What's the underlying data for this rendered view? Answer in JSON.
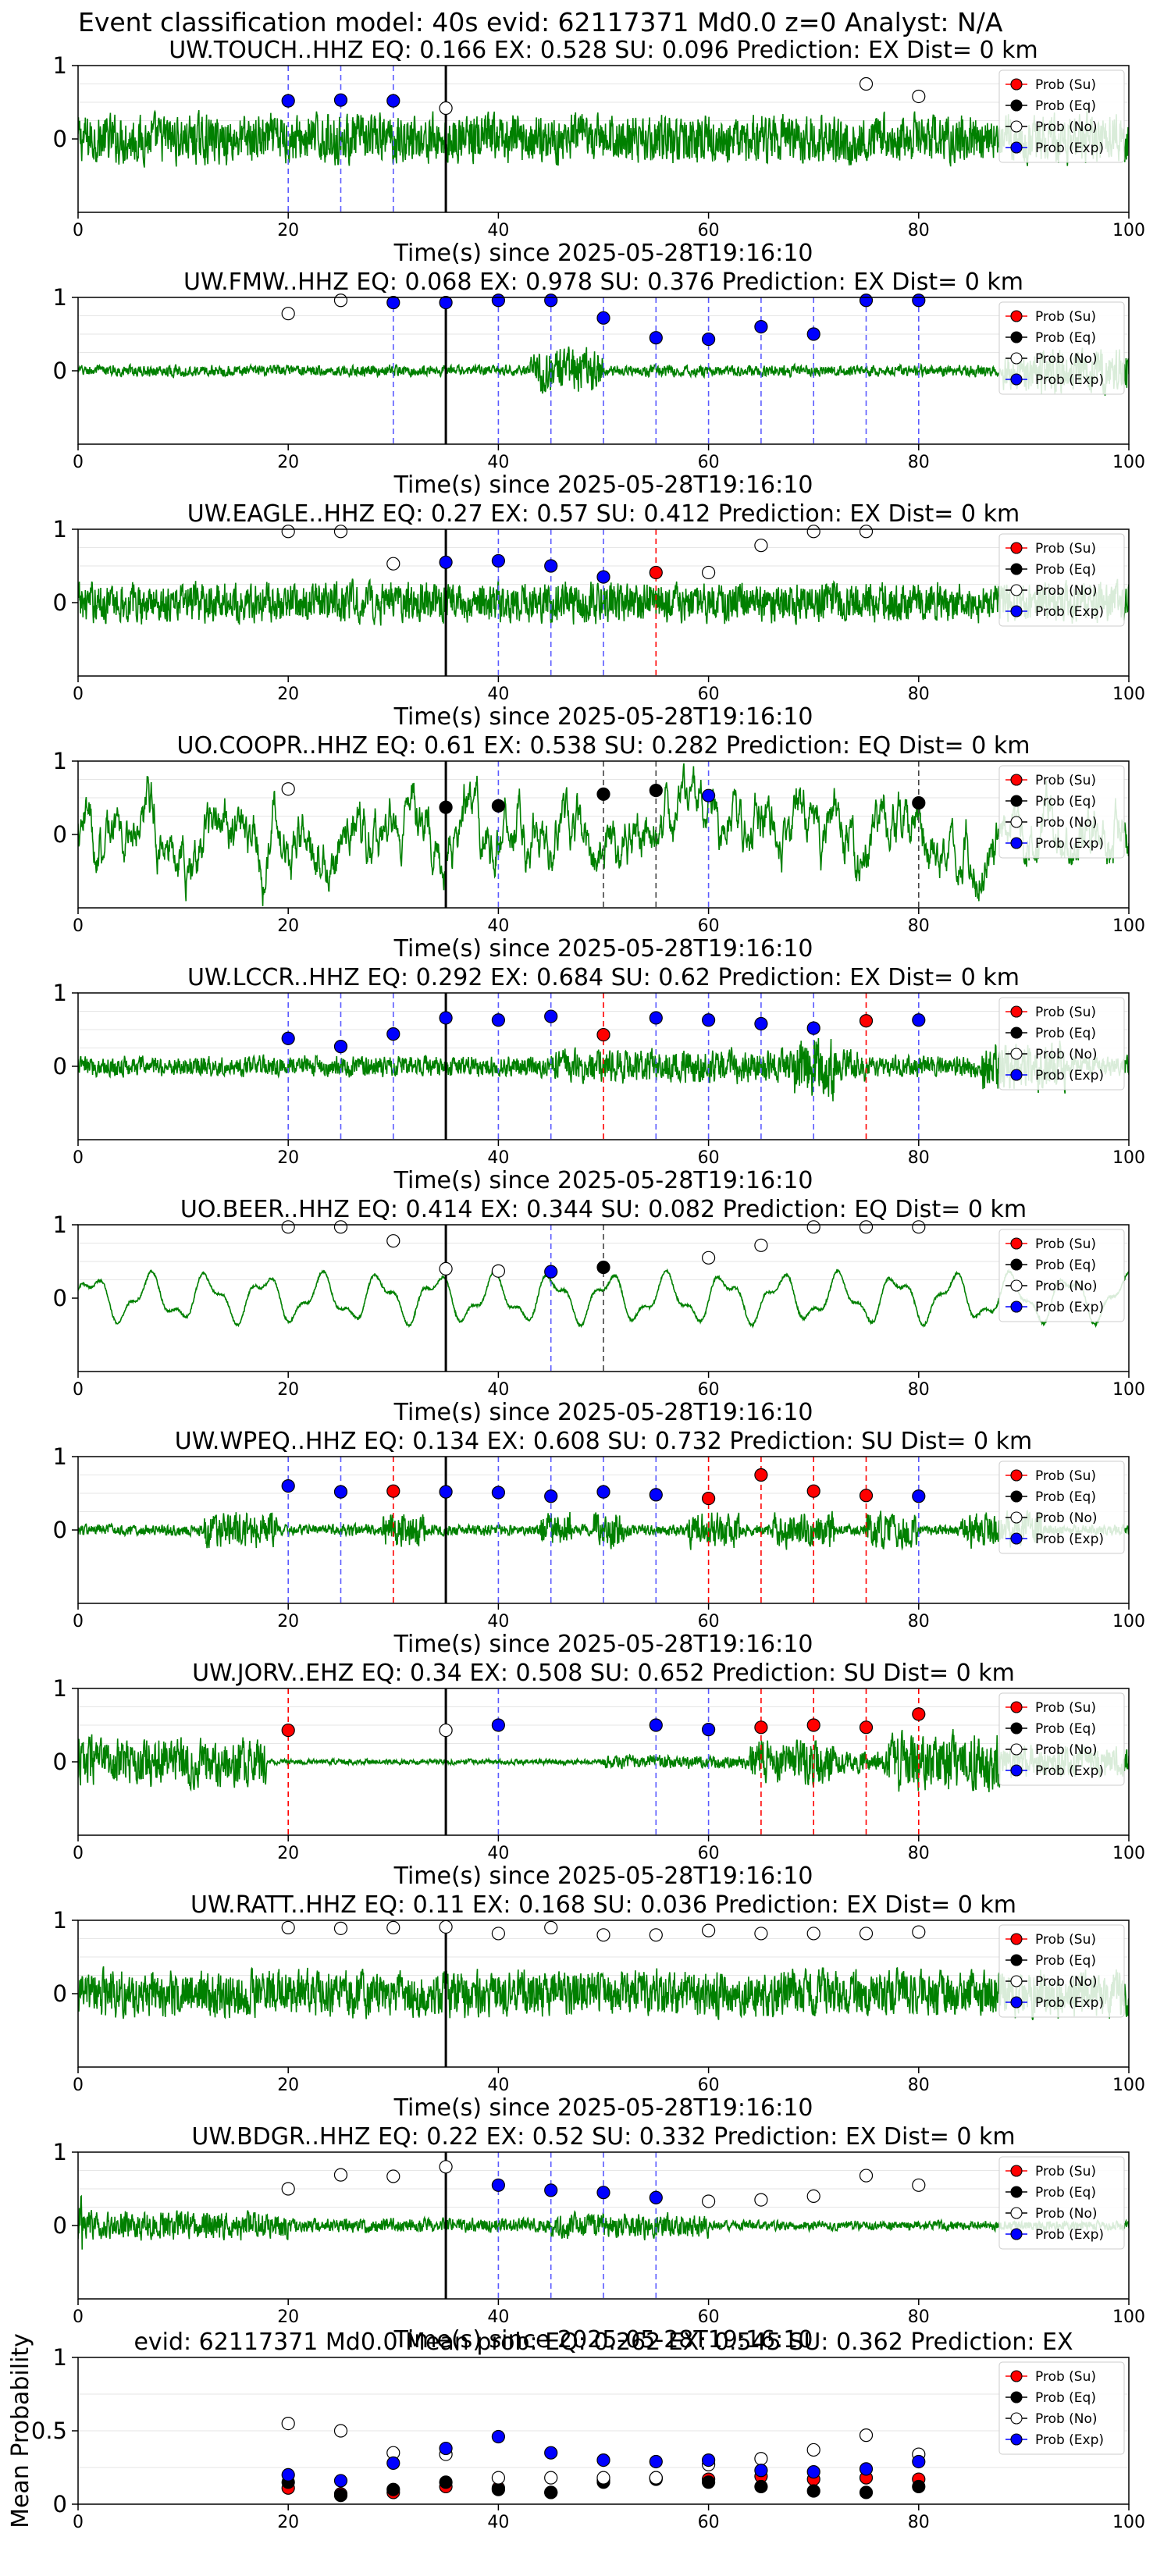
{
  "header": {
    "title": "Event classification model: 40s evid: 62117371 Md0.0 z=0 Analyst: N/A"
  },
  "legend_labels": [
    "Prob (Su)",
    "Prob (Eq)",
    "Prob (No)",
    "Prob (Exp)"
  ],
  "colors": {
    "waveform": "#008000",
    "su": "#ff0000",
    "eq": "#000000",
    "no": "#ffffff",
    "exp": "#0000ff",
    "pick": "#000000"
  },
  "chart_data": [
    {
      "type": "line",
      "title": "UW.TOUCH..HHZ   EQ: 0.166  EX: 0.528  SU: 0.096   Prediction: EX    Dist= 0 km",
      "xlabel": "Time(s) since 2025-05-28T19:16:10",
      "ylabel": "",
      "xlim": [
        0,
        100
      ],
      "ylim": [
        -1,
        1
      ],
      "yticks": [
        0,
        1
      ],
      "xticks": [
        0,
        20,
        40,
        60,
        80,
        100
      ],
      "pick_time": 35,
      "amplitude": 0.85,
      "envelope": "uniform",
      "vlines": [
        20,
        25,
        30
      ],
      "points": [
        {
          "x": 20,
          "y": 0.52,
          "class": "exp"
        },
        {
          "x": 25,
          "y": 0.53,
          "class": "exp"
        },
        {
          "x": 30,
          "y": 0.52,
          "class": "exp"
        },
        {
          "x": 35,
          "y": 0.42,
          "class": "no"
        },
        {
          "x": 75,
          "y": 0.75,
          "class": "no"
        },
        {
          "x": 80,
          "y": 0.58,
          "class": "no"
        }
      ]
    },
    {
      "type": "line",
      "title": "UW.FMW..HHZ   EQ: 0.068  EX: 0.978  SU: 0.376   Prediction: EX    Dist= 0 km",
      "xlabel": "Time(s) since 2025-05-28T19:16:10",
      "ylabel": "",
      "xlim": [
        0,
        100
      ],
      "ylim": [
        -1,
        1
      ],
      "yticks": [
        0,
        1
      ],
      "xticks": [
        0,
        20,
        40,
        60,
        80,
        100
      ],
      "pick_time": 35,
      "amplitude": 0.35,
      "envelope": "fmw",
      "vlines": [
        30,
        35,
        40,
        45,
        50,
        55,
        60,
        65,
        70,
        75,
        80
      ],
      "points": [
        {
          "x": 20,
          "y": 0.78,
          "class": "no"
        },
        {
          "x": 25,
          "y": 0.96,
          "class": "no"
        },
        {
          "x": 30,
          "y": 0.93,
          "class": "exp"
        },
        {
          "x": 35,
          "y": 0.93,
          "class": "exp"
        },
        {
          "x": 40,
          "y": 0.96,
          "class": "exp"
        },
        {
          "x": 45,
          "y": 0.96,
          "class": "exp"
        },
        {
          "x": 50,
          "y": 0.72,
          "class": "exp"
        },
        {
          "x": 55,
          "y": 0.45,
          "class": "exp"
        },
        {
          "x": 60,
          "y": 0.43,
          "class": "exp"
        },
        {
          "x": 65,
          "y": 0.6,
          "class": "exp"
        },
        {
          "x": 70,
          "y": 0.5,
          "class": "exp"
        },
        {
          "x": 75,
          "y": 0.96,
          "class": "exp"
        },
        {
          "x": 80,
          "y": 0.96,
          "class": "exp"
        }
      ]
    },
    {
      "type": "line",
      "title": "UW.EAGLE..HHZ   EQ: 0.27  EX: 0.57  SU: 0.412   Prediction: EX    Dist= 0 km",
      "xlabel": "Time(s) since 2025-05-28T19:16:10",
      "ylabel": "",
      "xlim": [
        0,
        100
      ],
      "ylim": [
        -1,
        1
      ],
      "yticks": [
        0,
        1
      ],
      "xticks": [
        0,
        20,
        40,
        60,
        80,
        100
      ],
      "pick_time": 35,
      "amplitude": 0.7,
      "envelope": "uniform",
      "vlines": [
        40,
        45,
        50,
        55
      ],
      "vline_colors": {
        "55": "su"
      },
      "points": [
        {
          "x": 20,
          "y": 0.97,
          "class": "no"
        },
        {
          "x": 25,
          "y": 0.97,
          "class": "no"
        },
        {
          "x": 30,
          "y": 0.53,
          "class": "no"
        },
        {
          "x": 35,
          "y": 0.55,
          "class": "exp"
        },
        {
          "x": 40,
          "y": 0.57,
          "class": "exp"
        },
        {
          "x": 45,
          "y": 0.5,
          "class": "exp"
        },
        {
          "x": 50,
          "y": 0.35,
          "class": "exp"
        },
        {
          "x": 55,
          "y": 0.41,
          "class": "su"
        },
        {
          "x": 60,
          "y": 0.41,
          "class": "no"
        },
        {
          "x": 65,
          "y": 0.78,
          "class": "no"
        },
        {
          "x": 70,
          "y": 0.97,
          "class": "no"
        },
        {
          "x": 75,
          "y": 0.97,
          "class": "no"
        }
      ]
    },
    {
      "type": "line",
      "title": "UO.COOPR..HHZ   EQ: 0.61  EX: 0.538  SU: 0.282   Prediction: EQ    Dist= 0 km",
      "xlabel": "Time(s) since 2025-05-28T19:16:10",
      "ylabel": "",
      "xlim": [
        0,
        100
      ],
      "ylim": [
        -1,
        1
      ],
      "yticks": [
        0,
        1
      ],
      "xticks": [
        0,
        20,
        40,
        60,
        80,
        100
      ],
      "pick_time": 35,
      "amplitude": 0.75,
      "envelope": "lowfreq",
      "vlines": [
        40,
        50,
        55,
        60,
        80
      ],
      "vline_colors": {
        "50": "eq",
        "55": "eq",
        "80": "eq"
      },
      "points": [
        {
          "x": 20,
          "y": 0.62,
          "class": "no"
        },
        {
          "x": 35,
          "y": 0.37,
          "class": "eq"
        },
        {
          "x": 40,
          "y": 0.39,
          "class": "eq"
        },
        {
          "x": 50,
          "y": 0.55,
          "class": "eq"
        },
        {
          "x": 55,
          "y": 0.6,
          "class": "eq"
        },
        {
          "x": 60,
          "y": 0.53,
          "class": "exp"
        },
        {
          "x": 80,
          "y": 0.43,
          "class": "eq"
        }
      ]
    },
    {
      "type": "line",
      "title": "UW.LCCR..HHZ   EQ: 0.292  EX: 0.684  SU: 0.62   Prediction: EX    Dist= 0 km",
      "xlabel": "Time(s) since 2025-05-28T19:16:10",
      "ylabel": "",
      "xlim": [
        0,
        100
      ],
      "ylim": [
        -1,
        1
      ],
      "yticks": [
        0,
        1
      ],
      "xticks": [
        0,
        20,
        40,
        60,
        80,
        100
      ],
      "pick_time": 35,
      "amplitude": 0.45,
      "envelope": "lccr",
      "vlines": [
        20,
        25,
        30,
        40,
        45,
        50,
        55,
        60,
        65,
        70,
        75,
        80
      ],
      "vline_colors": {
        "50": "su",
        "75": "su"
      },
      "points": [
        {
          "x": 20,
          "y": 0.38,
          "class": "exp"
        },
        {
          "x": 25,
          "y": 0.27,
          "class": "exp"
        },
        {
          "x": 30,
          "y": 0.44,
          "class": "exp"
        },
        {
          "x": 35,
          "y": 0.66,
          "class": "exp"
        },
        {
          "x": 40,
          "y": 0.63,
          "class": "exp"
        },
        {
          "x": 45,
          "y": 0.68,
          "class": "exp"
        },
        {
          "x": 50,
          "y": 0.43,
          "class": "su"
        },
        {
          "x": 55,
          "y": 0.66,
          "class": "exp"
        },
        {
          "x": 60,
          "y": 0.63,
          "class": "exp"
        },
        {
          "x": 65,
          "y": 0.58,
          "class": "exp"
        },
        {
          "x": 70,
          "y": 0.52,
          "class": "exp"
        },
        {
          "x": 75,
          "y": 0.62,
          "class": "su"
        },
        {
          "x": 80,
          "y": 0.63,
          "class": "exp"
        }
      ]
    },
    {
      "type": "line",
      "title": "UO.BEER..HHZ   EQ: 0.414  EX: 0.344  SU: 0.082   Prediction: EQ    Dist= 0 km",
      "xlabel": "Time(s) since 2025-05-28T19:16:10",
      "ylabel": "",
      "xlim": [
        0,
        100
      ],
      "ylim": [
        -1,
        1
      ],
      "yticks": [
        0,
        1
      ],
      "xticks": [
        0,
        20,
        40,
        60,
        80,
        100
      ],
      "pick_time": 35,
      "amplitude": 0.8,
      "envelope": "sine",
      "vlines": [
        45,
        50
      ],
      "vline_colors": {
        "50": "eq"
      },
      "points": [
        {
          "x": 20,
          "y": 0.97,
          "class": "no"
        },
        {
          "x": 25,
          "y": 0.97,
          "class": "no"
        },
        {
          "x": 30,
          "y": 0.78,
          "class": "no"
        },
        {
          "x": 35,
          "y": 0.4,
          "class": "no"
        },
        {
          "x": 40,
          "y": 0.37,
          "class": "no"
        },
        {
          "x": 45,
          "y": 0.36,
          "class": "exp"
        },
        {
          "x": 50,
          "y": 0.42,
          "class": "eq"
        },
        {
          "x": 60,
          "y": 0.55,
          "class": "no"
        },
        {
          "x": 65,
          "y": 0.72,
          "class": "no"
        },
        {
          "x": 70,
          "y": 0.97,
          "class": "no"
        },
        {
          "x": 75,
          "y": 0.97,
          "class": "no"
        },
        {
          "x": 80,
          "y": 0.97,
          "class": "no"
        }
      ]
    },
    {
      "type": "line",
      "title": "UW.WPEQ..HHZ   EQ: 0.134  EX: 0.608  SU: 0.732   Prediction: SU    Dist= 0 km",
      "xlabel": "Time(s) since 2025-05-28T19:16:10",
      "ylabel": "",
      "xlim": [
        0,
        100
      ],
      "ylim": [
        -1,
        1
      ],
      "yticks": [
        0,
        1
      ],
      "xticks": [
        0,
        20,
        40,
        60,
        80,
        100
      ],
      "pick_time": 35,
      "amplitude": 0.55,
      "envelope": "bursty",
      "vlines": [
        20,
        25,
        30,
        40,
        45,
        50,
        55,
        60,
        65,
        70,
        75,
        80
      ],
      "vline_colors": {
        "30": "su",
        "60": "su",
        "65": "su",
        "70": "su",
        "75": "su"
      },
      "points": [
        {
          "x": 20,
          "y": 0.6,
          "class": "exp"
        },
        {
          "x": 25,
          "y": 0.52,
          "class": "exp"
        },
        {
          "x": 30,
          "y": 0.53,
          "class": "su"
        },
        {
          "x": 35,
          "y": 0.52,
          "class": "exp"
        },
        {
          "x": 40,
          "y": 0.51,
          "class": "exp"
        },
        {
          "x": 45,
          "y": 0.46,
          "class": "exp"
        },
        {
          "x": 50,
          "y": 0.52,
          "class": "exp"
        },
        {
          "x": 55,
          "y": 0.48,
          "class": "exp"
        },
        {
          "x": 60,
          "y": 0.43,
          "class": "su"
        },
        {
          "x": 65,
          "y": 0.75,
          "class": "su"
        },
        {
          "x": 70,
          "y": 0.53,
          "class": "su"
        },
        {
          "x": 75,
          "y": 0.47,
          "class": "su"
        },
        {
          "x": 80,
          "y": 0.46,
          "class": "exp"
        }
      ]
    },
    {
      "type": "line",
      "title": "UW.JORV..EHZ   EQ: 0.34  EX: 0.508  SU: 0.652   Prediction: SU    Dist= 0 km",
      "xlabel": "Time(s) since 2025-05-28T19:16:10",
      "ylabel": "",
      "xlim": [
        0,
        100
      ],
      "ylim": [
        -1,
        1
      ],
      "yticks": [
        0,
        1
      ],
      "xticks": [
        0,
        20,
        40,
        60,
        80,
        100
      ],
      "pick_time": 35,
      "amplitude": 0.75,
      "envelope": "jorv",
      "vlines": [
        20,
        40,
        55,
        60,
        65,
        70,
        75,
        80
      ],
      "vline_colors": {
        "20": "su",
        "65": "su",
        "70": "su",
        "75": "su",
        "80": "su"
      },
      "points": [
        {
          "x": 20,
          "y": 0.43,
          "class": "su"
        },
        {
          "x": 35,
          "y": 0.43,
          "class": "no"
        },
        {
          "x": 40,
          "y": 0.5,
          "class": "exp"
        },
        {
          "x": 55,
          "y": 0.5,
          "class": "exp"
        },
        {
          "x": 60,
          "y": 0.44,
          "class": "exp"
        },
        {
          "x": 65,
          "y": 0.47,
          "class": "su"
        },
        {
          "x": 70,
          "y": 0.5,
          "class": "su"
        },
        {
          "x": 75,
          "y": 0.47,
          "class": "su"
        },
        {
          "x": 80,
          "y": 0.65,
          "class": "su"
        }
      ]
    },
    {
      "type": "line",
      "title": "UW.RATT..HHZ   EQ: 0.11  EX: 0.168  SU: 0.036   Prediction: EX    Dist= 0 km",
      "xlabel": "Time(s) since 2025-05-28T19:16:10",
      "ylabel": "",
      "xlim": [
        0,
        100
      ],
      "ylim": [
        -1,
        1
      ],
      "yticks": [
        0,
        1
      ],
      "xticks": [
        0,
        20,
        40,
        60,
        80,
        100
      ],
      "pick_time": 35,
      "amplitude": 0.8,
      "envelope": "uniform",
      "vlines": [],
      "points": [
        {
          "x": 20,
          "y": 0.9,
          "class": "no"
        },
        {
          "x": 25,
          "y": 0.89,
          "class": "no"
        },
        {
          "x": 30,
          "y": 0.9,
          "class": "no"
        },
        {
          "x": 35,
          "y": 0.91,
          "class": "no"
        },
        {
          "x": 40,
          "y": 0.82,
          "class": "no"
        },
        {
          "x": 45,
          "y": 0.9,
          "class": "no"
        },
        {
          "x": 50,
          "y": 0.8,
          "class": "no"
        },
        {
          "x": 55,
          "y": 0.8,
          "class": "no"
        },
        {
          "x": 60,
          "y": 0.86,
          "class": "no"
        },
        {
          "x": 65,
          "y": 0.82,
          "class": "no"
        },
        {
          "x": 70,
          "y": 0.82,
          "class": "no"
        },
        {
          "x": 75,
          "y": 0.82,
          "class": "no"
        },
        {
          "x": 80,
          "y": 0.84,
          "class": "no"
        }
      ]
    },
    {
      "type": "line",
      "title": "UW.BDGR..HHZ   EQ: 0.22  EX: 0.52  SU: 0.332   Prediction: EX    Dist= 0 km",
      "xlabel": "Time(s) since 2025-05-28T19:16:10",
      "ylabel": "",
      "xlim": [
        0,
        100
      ],
      "ylim": [
        -1,
        1
      ],
      "yticks": [
        0,
        1
      ],
      "xticks": [
        0,
        20,
        40,
        60,
        80,
        100
      ],
      "pick_time": 35,
      "amplitude": 0.55,
      "envelope": "bdgr",
      "vlines": [
        40,
        45,
        50,
        55
      ],
      "points": [
        {
          "x": 20,
          "y": 0.5,
          "class": "no"
        },
        {
          "x": 25,
          "y": 0.69,
          "class": "no"
        },
        {
          "x": 30,
          "y": 0.67,
          "class": "no"
        },
        {
          "x": 35,
          "y": 0.8,
          "class": "no"
        },
        {
          "x": 40,
          "y": 0.55,
          "class": "exp"
        },
        {
          "x": 45,
          "y": 0.48,
          "class": "exp"
        },
        {
          "x": 50,
          "y": 0.45,
          "class": "exp"
        },
        {
          "x": 55,
          "y": 0.38,
          "class": "exp"
        },
        {
          "x": 60,
          "y": 0.33,
          "class": "no"
        },
        {
          "x": 65,
          "y": 0.35,
          "class": "no"
        },
        {
          "x": 70,
          "y": 0.4,
          "class": "no"
        },
        {
          "x": 75,
          "y": 0.68,
          "class": "no"
        },
        {
          "x": 80,
          "y": 0.55,
          "class": "no"
        }
      ]
    },
    {
      "type": "scatter",
      "title": "evid: 62117371  Md0.0   Mean prob:   EQ: 0.262  EX: 0.545  SU: 0.362   Prediction: EX",
      "xlabel": "",
      "ylabel": "Mean Probability",
      "xlim": [
        0,
        100
      ],
      "ylim": [
        0,
        1
      ],
      "yticks": [
        0.0,
        0.5,
        1.0
      ],
      "xticks": [
        0,
        20,
        40,
        60,
        80,
        100
      ],
      "x": [
        20,
        25,
        30,
        35,
        40,
        45,
        50,
        55,
        60,
        65,
        70,
        75,
        80
      ],
      "series": [
        {
          "class": "su",
          "values": [
            0.11,
            0.07,
            0.08,
            0.12,
            0.11,
            0.08,
            0.16,
            0.18,
            0.17,
            0.19,
            0.17,
            0.18,
            0.17
          ]
        },
        {
          "class": "eq",
          "values": [
            0.15,
            0.06,
            0.1,
            0.15,
            0.1,
            0.08,
            0.15,
            0.17,
            0.15,
            0.12,
            0.09,
            0.08,
            0.12
          ]
        },
        {
          "class": "no",
          "values": [
            0.55,
            0.5,
            0.35,
            0.34,
            0.18,
            0.18,
            0.18,
            0.18,
            0.27,
            0.31,
            0.37,
            0.47,
            0.34
          ]
        },
        {
          "class": "exp",
          "values": [
            0.2,
            0.16,
            0.28,
            0.38,
            0.46,
            0.35,
            0.3,
            0.29,
            0.3,
            0.23,
            0.22,
            0.24,
            0.29
          ]
        }
      ]
    }
  ]
}
